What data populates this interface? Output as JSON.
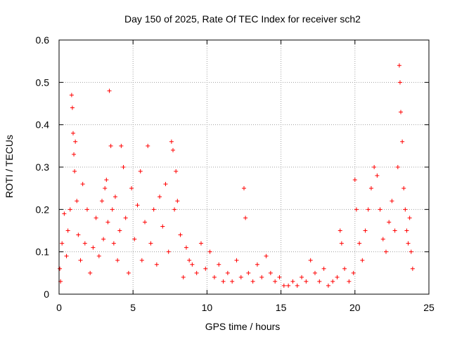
{
  "chart_data": {
    "type": "scatter",
    "title": "Day 150 of 2025, Rate Of TEC Index for receiver sch2",
    "xlabel": "GPS time / hours",
    "ylabel": "ROTI / TECUs",
    "xlim": [
      0,
      25
    ],
    "ylim": [
      0,
      0.6
    ],
    "xticks": [
      "0",
      "5",
      "10",
      "15",
      "20",
      "25"
    ],
    "yticks": [
      "0",
      "0.1",
      "0.2",
      "0.3",
      "0.4",
      "0.5",
      "0.6"
    ],
    "grid": true,
    "marker": "+",
    "marker_color": "#ff0000",
    "series": [
      {
        "x": [
          0.05,
          0.1,
          0.2,
          0.35,
          0.5,
          0.6,
          0.75,
          0.85,
          0.9,
          0.95,
          1.0,
          1.05,
          1.1,
          1.2,
          1.3,
          1.45,
          1.6,
          1.75,
          1.9,
          2.1,
          2.3,
          2.5,
          2.7,
          2.9,
          3.0,
          3.1,
          3.2,
          3.3,
          3.4,
          3.5,
          3.6,
          3.7,
          3.8,
          3.95,
          4.1,
          4.2,
          4.35,
          4.5,
          4.7,
          4.9,
          5.1,
          5.3,
          5.5,
          5.6,
          5.8,
          6.0,
          6.2,
          6.4,
          6.6,
          6.8,
          7.0,
          7.2,
          7.4,
          7.6,
          7.7,
          7.8,
          7.9,
          8.0,
          8.2,
          8.4,
          8.6,
          8.8,
          9.0,
          9.3,
          9.6,
          9.9,
          10.2,
          10.5,
          10.8,
          11.1,
          11.4,
          11.7,
          12.0,
          12.3,
          12.5,
          12.6,
          12.8,
          13.1,
          13.4,
          13.7,
          14.0,
          14.3,
          14.6,
          14.9,
          15.2,
          15.5,
          15.8,
          16.1,
          16.4,
          16.7,
          17.0,
          17.3,
          17.6,
          17.9,
          18.2,
          18.5,
          18.8,
          19.0,
          19.1,
          19.3,
          19.6,
          19.9,
          20.0,
          20.1,
          20.3,
          20.5,
          20.7,
          20.9,
          21.1,
          21.3,
          21.5,
          21.7,
          21.9,
          22.1,
          22.3,
          22.5,
          22.7,
          22.9,
          23.0,
          23.05,
          23.1,
          23.2,
          23.3,
          23.4,
          23.5,
          23.6,
          23.7,
          23.8,
          23.9
        ],
        "y": [
          0.06,
          0.03,
          0.12,
          0.19,
          0.09,
          0.15,
          0.2,
          0.47,
          0.44,
          0.38,
          0.33,
          0.29,
          0.36,
          0.22,
          0.14,
          0.08,
          0.26,
          0.12,
          0.2,
          0.05,
          0.11,
          0.18,
          0.09,
          0.22,
          0.13,
          0.25,
          0.27,
          0.17,
          0.48,
          0.35,
          0.2,
          0.12,
          0.23,
          0.08,
          0.15,
          0.35,
          0.3,
          0.18,
          0.05,
          0.25,
          0.13,
          0.21,
          0.29,
          0.08,
          0.17,
          0.35,
          0.12,
          0.2,
          0.07,
          0.23,
          0.16,
          0.26,
          0.1,
          0.36,
          0.34,
          0.2,
          0.29,
          0.22,
          0.14,
          0.04,
          0.11,
          0.08,
          0.07,
          0.05,
          0.12,
          0.06,
          0.1,
          0.04,
          0.07,
          0.03,
          0.05,
          0.03,
          0.08,
          0.04,
          0.25,
          0.18,
          0.05,
          0.03,
          0.07,
          0.04,
          0.09,
          0.05,
          0.03,
          0.04,
          0.02,
          0.02,
          0.03,
          0.02,
          0.04,
          0.03,
          0.08,
          0.05,
          0.03,
          0.06,
          0.02,
          0.03,
          0.04,
          0.15,
          0.12,
          0.06,
          0.03,
          0.05,
          0.27,
          0.2,
          0.12,
          0.08,
          0.15,
          0.2,
          0.25,
          0.3,
          0.28,
          0.2,
          0.13,
          0.1,
          0.17,
          0.22,
          0.15,
          0.3,
          0.54,
          0.5,
          0.43,
          0.36,
          0.25,
          0.2,
          0.15,
          0.12,
          0.18,
          0.1,
          0.06
        ]
      }
    ]
  }
}
